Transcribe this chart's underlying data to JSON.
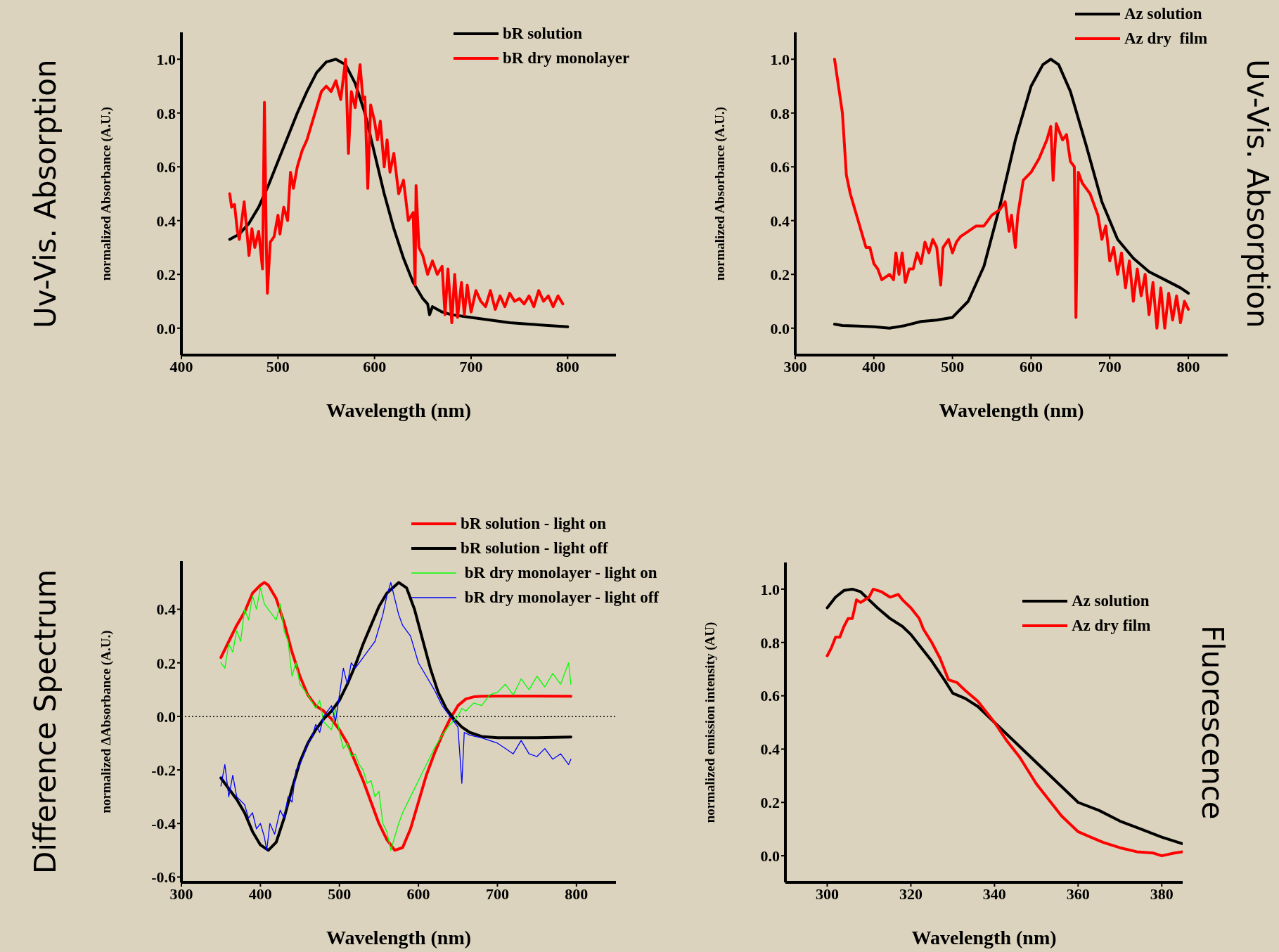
{
  "chart_data": [
    {
      "type": "line",
      "title": "Uv-Vis. Absorption",
      "xlabel": "Wavelength (nm)",
      "ylabel": "normalized Absorbance (A.U.)",
      "xlim": [
        400,
        850
      ],
      "xticks": [
        400,
        500,
        600,
        700,
        800
      ],
      "ylim": [
        -0.1,
        1.1
      ],
      "yticks": [
        {
          "value": 0,
          "label": "0.0"
        },
        {
          "value": 0.2,
          "label": "0.2"
        },
        {
          "value": 0.4,
          "label": "0.4"
        },
        {
          "value": 0.6,
          "label": "0.6"
        },
        {
          "value": 0.8,
          "label": "0.8"
        },
        {
          "value": 1,
          "label": "1.0"
        }
      ],
      "legend": "top right",
      "series": [
        {
          "name": "bR solution",
          "color": "#000000",
          "x": [
            450,
            460,
            470,
            480,
            490,
            500,
            510,
            520,
            530,
            540,
            550,
            560,
            570,
            580,
            590,
            600,
            610,
            620,
            630,
            640,
            650,
            655,
            657,
            660,
            670,
            680,
            700,
            720,
            740,
            760,
            780,
            800
          ],
          "values": [
            0.33,
            0.35,
            0.39,
            0.45,
            0.53,
            0.62,
            0.71,
            0.8,
            0.88,
            0.95,
            0.99,
            1.0,
            0.98,
            0.91,
            0.8,
            0.65,
            0.5,
            0.37,
            0.26,
            0.17,
            0.11,
            0.09,
            0.05,
            0.08,
            0.06,
            0.05,
            0.04,
            0.03,
            0.02,
            0.015,
            0.01,
            0.005
          ]
        },
        {
          "name": "bR dry monolayer",
          "color": "#ff0000",
          "x": [
            450,
            452,
            455,
            458,
            460,
            465,
            468,
            470,
            473,
            476,
            480,
            484,
            486,
            488,
            489,
            492,
            496,
            500,
            502,
            506,
            510,
            513,
            516,
            520,
            525,
            530,
            535,
            540,
            545,
            550,
            555,
            560,
            565,
            570,
            573,
            576,
            580,
            585,
            588,
            590,
            593,
            596,
            600,
            603,
            606,
            610,
            613,
            616,
            620,
            625,
            630,
            635,
            640,
            642,
            643,
            646,
            650,
            655,
            660,
            665,
            670,
            673,
            676,
            680,
            683,
            686,
            690,
            693,
            696,
            700,
            705,
            710,
            715,
            720,
            725,
            730,
            735,
            740,
            745,
            750,
            755,
            760,
            765,
            770,
            775,
            780,
            785,
            790,
            795
          ],
          "values": [
            0.5,
            0.45,
            0.46,
            0.36,
            0.33,
            0.47,
            0.35,
            0.27,
            0.37,
            0.3,
            0.36,
            0.22,
            0.84,
            0.3,
            0.13,
            0.32,
            0.34,
            0.42,
            0.35,
            0.45,
            0.4,
            0.58,
            0.52,
            0.6,
            0.66,
            0.7,
            0.76,
            0.82,
            0.88,
            0.9,
            0.88,
            0.92,
            0.85,
            1.0,
            0.65,
            0.88,
            0.82,
            0.98,
            0.85,
            0.86,
            0.52,
            0.83,
            0.77,
            0.7,
            0.77,
            0.6,
            0.7,
            0.58,
            0.65,
            0.5,
            0.55,
            0.4,
            0.43,
            0.16,
            0.53,
            0.3,
            0.27,
            0.2,
            0.25,
            0.2,
            0.23,
            0.05,
            0.22,
            0.02,
            0.2,
            0.04,
            0.17,
            0.05,
            0.16,
            0.06,
            0.14,
            0.1,
            0.08,
            0.14,
            0.07,
            0.12,
            0.08,
            0.13,
            0.1,
            0.11,
            0.09,
            0.12,
            0.08,
            0.14,
            0.1,
            0.12,
            0.08,
            0.12,
            0.09
          ]
        }
      ]
    },
    {
      "type": "line",
      "title": "Uv-Vis. Absorption",
      "xlabel": "Wavelength (nm)",
      "ylabel": "normalized Absorbance (A.U.)",
      "xlim": [
        300,
        850
      ],
      "xticks": [
        300,
        400,
        500,
        600,
        700,
        800
      ],
      "ylim": [
        -0.1,
        1.1
      ],
      "yticks": [
        {
          "value": 0,
          "label": "0.0"
        },
        {
          "value": 0.2,
          "label": "0.2"
        },
        {
          "value": 0.4,
          "label": "0.4"
        },
        {
          "value": 0.6,
          "label": "0.6"
        },
        {
          "value": 0.8,
          "label": "0.8"
        },
        {
          "value": 1,
          "label": "1.0"
        }
      ],
      "legend": "top right",
      "series": [
        {
          "name": "Az solution",
          "color": "#000000",
          "x": [
            350,
            360,
            380,
            400,
            420,
            440,
            460,
            480,
            500,
            520,
            540,
            560,
            580,
            600,
            615,
            625,
            635,
            650,
            670,
            690,
            710,
            730,
            750,
            770,
            790,
            800
          ],
          "values": [
            0.015,
            0.01,
            0.008,
            0.005,
            0.0,
            0.01,
            0.025,
            0.03,
            0.04,
            0.1,
            0.23,
            0.45,
            0.7,
            0.9,
            0.98,
            1.0,
            0.98,
            0.88,
            0.68,
            0.47,
            0.33,
            0.26,
            0.21,
            0.18,
            0.15,
            0.13
          ]
        },
        {
          "name": "Az dry  film",
          "color": "#ff0000",
          "x": [
            350,
            355,
            360,
            365,
            370,
            375,
            380,
            385,
            390,
            395,
            400,
            405,
            410,
            420,
            425,
            428,
            432,
            436,
            440,
            445,
            450,
            455,
            460,
            465,
            470,
            475,
            480,
            485,
            488,
            495,
            500,
            505,
            510,
            520,
            530,
            540,
            550,
            560,
            567,
            572,
            575,
            580,
            583,
            590,
            600,
            610,
            620,
            625,
            628,
            632,
            640,
            645,
            650,
            655,
            657,
            660,
            665,
            675,
            685,
            690,
            695,
            700,
            705,
            710,
            715,
            720,
            725,
            730,
            735,
            740,
            745,
            750,
            755,
            760,
            765,
            770,
            775,
            780,
            785,
            790,
            795,
            800
          ],
          "values": [
            1.0,
            0.9,
            0.8,
            0.57,
            0.5,
            0.45,
            0.4,
            0.35,
            0.3,
            0.3,
            0.24,
            0.22,
            0.18,
            0.2,
            0.18,
            0.28,
            0.2,
            0.28,
            0.17,
            0.22,
            0.22,
            0.28,
            0.24,
            0.32,
            0.28,
            0.33,
            0.3,
            0.16,
            0.3,
            0.33,
            0.28,
            0.32,
            0.34,
            0.36,
            0.38,
            0.38,
            0.42,
            0.44,
            0.47,
            0.36,
            0.42,
            0.3,
            0.42,
            0.55,
            0.58,
            0.63,
            0.7,
            0.75,
            0.55,
            0.76,
            0.7,
            0.72,
            0.62,
            0.6,
            0.04,
            0.58,
            0.54,
            0.5,
            0.42,
            0.33,
            0.38,
            0.25,
            0.3,
            0.2,
            0.28,
            0.15,
            0.25,
            0.1,
            0.22,
            0.12,
            0.2,
            0.05,
            0.17,
            0.0,
            0.15,
            0.0,
            0.13,
            0.03,
            0.12,
            0.02,
            0.1,
            0.07
          ]
        }
      ]
    },
    {
      "type": "line",
      "title": "Difference Spectrum",
      "xlabel": "Wavelength (nm)",
      "ylabel": "normalized ΔAbsorbance  (A.U.)",
      "xlim": [
        300,
        850
      ],
      "xticks": [
        300,
        400,
        500,
        600,
        700,
        800
      ],
      "ylim": [
        -0.62,
        0.58
      ],
      "yticks": [
        {
          "value": -0.6,
          "label": "-0.6"
        },
        {
          "value": -0.4,
          "label": "-0.4"
        },
        {
          "value": -0.2,
          "label": "-0.2"
        },
        {
          "value": 0,
          "label": "0.0"
        },
        {
          "value": 0.2,
          "label": "0.2"
        },
        {
          "value": 0.4,
          "label": "0.4"
        }
      ],
      "legend": "top right",
      "ref_lines": [
        {
          "axis": "y",
          "value": 0,
          "color": "#000000",
          "line_style": "dotted"
        }
      ],
      "series": [
        {
          "name": "bR solution - light on",
          "color": "#ff0000",
          "x": [
            350,
            360,
            370,
            380,
            390,
            400,
            405,
            410,
            420,
            430,
            440,
            450,
            460,
            470,
            480,
            490,
            500,
            510,
            520,
            530,
            540,
            550,
            560,
            570,
            580,
            590,
            600,
            610,
            620,
            630,
            640,
            650,
            660,
            670,
            680,
            700,
            750,
            793
          ],
          "values": [
            0.22,
            0.28,
            0.34,
            0.39,
            0.46,
            0.49,
            0.5,
            0.49,
            0.44,
            0.35,
            0.24,
            0.15,
            0.08,
            0.04,
            0.02,
            -0.01,
            -0.05,
            -0.1,
            -0.17,
            -0.24,
            -0.32,
            -0.4,
            -0.46,
            -0.5,
            -0.49,
            -0.42,
            -0.32,
            -0.22,
            -0.14,
            -0.07,
            -0.01,
            0.04,
            0.065,
            0.073,
            0.075,
            0.076,
            0.076,
            0.075
          ]
        },
        {
          "name": "bR solution - light off",
          "color": "#000000",
          "x": [
            350,
            370,
            380,
            390,
            400,
            410,
            420,
            430,
            440,
            450,
            460,
            470,
            480,
            490,
            500,
            510,
            520,
            530,
            540,
            550,
            560,
            575,
            585,
            595,
            605,
            615,
            625,
            635,
            645,
            655,
            665,
            680,
            700,
            750,
            793
          ],
          "values": [
            -0.23,
            -0.31,
            -0.36,
            -0.43,
            -0.48,
            -0.5,
            -0.47,
            -0.38,
            -0.27,
            -0.17,
            -0.1,
            -0.05,
            -0.01,
            0.02,
            0.06,
            0.12,
            0.19,
            0.27,
            0.34,
            0.41,
            0.46,
            0.5,
            0.48,
            0.4,
            0.29,
            0.18,
            0.09,
            0.03,
            -0.01,
            -0.04,
            -0.06,
            -0.075,
            -0.08,
            -0.08,
            -0.077
          ]
        },
        {
          "name": " bR dry monolayer - light on",
          "color": "#00ff00",
          "x": [
            350,
            355,
            360,
            365,
            370,
            375,
            380,
            385,
            390,
            395,
            400,
            405,
            410,
            415,
            420,
            425,
            430,
            435,
            440,
            445,
            450,
            455,
            460,
            470,
            475,
            480,
            490,
            495,
            500,
            505,
            510,
            515,
            520,
            525,
            530,
            535,
            540,
            545,
            550,
            555,
            560,
            565,
            570,
            575,
            580,
            590,
            600,
            610,
            620,
            630,
            640,
            650,
            655,
            660,
            670,
            680,
            690,
            700,
            710,
            720,
            730,
            740,
            750,
            760,
            770,
            780,
            790,
            793
          ],
          "values": [
            0.2,
            0.18,
            0.27,
            0.24,
            0.32,
            0.28,
            0.4,
            0.36,
            0.45,
            0.4,
            0.48,
            0.42,
            0.4,
            0.38,
            0.36,
            0.42,
            0.32,
            0.28,
            0.15,
            0.2,
            0.12,
            0.1,
            0.08,
            0.03,
            0.06,
            -0.02,
            -0.05,
            0.03,
            -0.06,
            -0.12,
            -0.1,
            -0.15,
            -0.14,
            -0.18,
            -0.2,
            -0.25,
            -0.24,
            -0.3,
            -0.28,
            -0.4,
            -0.43,
            -0.5,
            -0.45,
            -0.4,
            -0.36,
            -0.3,
            -0.24,
            -0.18,
            -0.12,
            -0.07,
            -0.03,
            0.0,
            0.03,
            0.02,
            0.05,
            0.04,
            0.08,
            0.09,
            0.12,
            0.08,
            0.14,
            0.1,
            0.15,
            0.11,
            0.16,
            0.12,
            0.2,
            0.12
          ]
        },
        {
          "name": " bR dry monolayer - light off",
          "color": "#0000ff",
          "x": [
            350,
            355,
            360,
            365,
            370,
            380,
            385,
            390,
            395,
            400,
            405,
            408,
            412,
            418,
            425,
            430,
            435,
            440,
            445,
            450,
            455,
            460,
            465,
            470,
            475,
            480,
            490,
            495,
            500,
            505,
            510,
            515,
            520,
            530,
            540,
            545,
            550,
            555,
            560,
            565,
            570,
            575,
            580,
            590,
            600,
            610,
            620,
            630,
            640,
            650,
            655,
            658,
            665,
            680,
            700,
            710,
            720,
            730,
            740,
            750,
            760,
            770,
            780,
            790,
            793
          ],
          "values": [
            -0.26,
            -0.18,
            -0.3,
            -0.22,
            -0.3,
            -0.33,
            -0.38,
            -0.36,
            -0.42,
            -0.4,
            -0.45,
            -0.5,
            -0.4,
            -0.44,
            -0.35,
            -0.38,
            -0.3,
            -0.32,
            -0.2,
            -0.18,
            -0.14,
            -0.1,
            -0.08,
            -0.03,
            -0.06,
            0.0,
            0.04,
            -0.02,
            0.08,
            0.18,
            0.12,
            0.2,
            0.18,
            0.22,
            0.26,
            0.28,
            0.33,
            0.38,
            0.45,
            0.5,
            0.44,
            0.38,
            0.34,
            0.3,
            0.2,
            0.15,
            0.1,
            0.04,
            0.0,
            -0.04,
            -0.25,
            -0.06,
            -0.07,
            -0.08,
            -0.1,
            -0.12,
            -0.14,
            -0.09,
            -0.14,
            -0.15,
            -0.12,
            -0.16,
            -0.14,
            -0.18,
            -0.16
          ]
        }
      ]
    },
    {
      "type": "line",
      "title": "Fluorescence",
      "xlabel": "Wavelength (nm)",
      "ylabel": "normalized emission intensity (AU)",
      "xlim": [
        290,
        385
      ],
      "xticks": [
        300,
        320,
        340,
        360,
        380
      ],
      "ylim": [
        -0.1,
        1.1
      ],
      "yticks": [
        {
          "value": 0,
          "label": "0.0"
        },
        {
          "value": 0.2,
          "label": "0.2"
        },
        {
          "value": 0.4,
          "label": "0.4"
        },
        {
          "value": 0.6,
          "label": "0.6"
        },
        {
          "value": 0.8,
          "label": "0.8"
        },
        {
          "value": 1,
          "label": "1.0"
        }
      ],
      "legend": "top right",
      "series": [
        {
          "name": "Az solution",
          "color": "#000000",
          "x": [
            300,
            302,
            304,
            306,
            308,
            310,
            312,
            315,
            318,
            320,
            322,
            325,
            328,
            330,
            333,
            336,
            340,
            344,
            348,
            352,
            356,
            360,
            365,
            370,
            375,
            380,
            385
          ],
          "values": [
            0.93,
            0.97,
            0.995,
            1.0,
            0.99,
            0.96,
            0.93,
            0.89,
            0.86,
            0.83,
            0.79,
            0.73,
            0.66,
            0.61,
            0.59,
            0.56,
            0.5,
            0.44,
            0.38,
            0.32,
            0.26,
            0.2,
            0.17,
            0.13,
            0.1,
            0.07,
            0.045
          ]
        },
        {
          "name": "Az dry film",
          "color": "#ff0000",
          "x": [
            300,
            301,
            302,
            303,
            304,
            305,
            306,
            307,
            308,
            310,
            311,
            313,
            315,
            317,
            318,
            320,
            322,
            323,
            325,
            327,
            329,
            331,
            333,
            336,
            340,
            343,
            346,
            348,
            350,
            353,
            356,
            360,
            363,
            366,
            370,
            374,
            378,
            380,
            383,
            385
          ],
          "values": [
            0.75,
            0.78,
            0.82,
            0.82,
            0.86,
            0.89,
            0.89,
            0.96,
            0.95,
            0.97,
            1.0,
            0.99,
            0.97,
            0.98,
            0.96,
            0.93,
            0.89,
            0.85,
            0.8,
            0.74,
            0.66,
            0.65,
            0.62,
            0.58,
            0.5,
            0.43,
            0.37,
            0.32,
            0.27,
            0.21,
            0.15,
            0.09,
            0.07,
            0.05,
            0.03,
            0.015,
            0.01,
            0.0,
            0.01,
            0.015
          ]
        }
      ]
    }
  ]
}
